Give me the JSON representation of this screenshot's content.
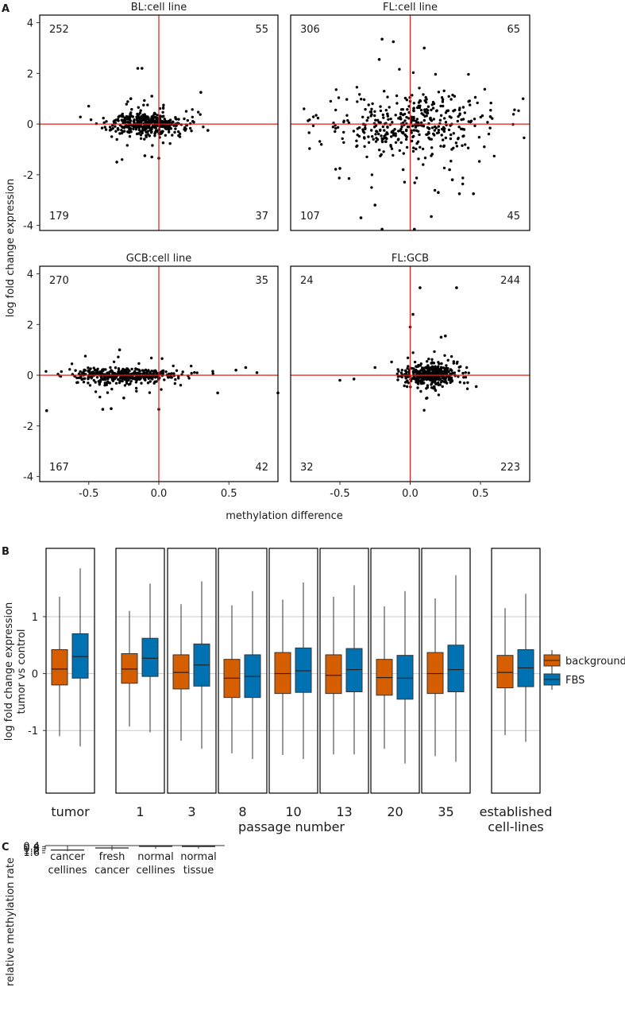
{
  "chart_data": [
    {
      "panel": "A",
      "type": "scatter",
      "xlabel": "methylation difference",
      "ylabel": "log fold change expression",
      "xlim": [
        -0.85,
        0.85
      ],
      "ylim": [
        -4.2,
        4.3
      ],
      "xticks": [
        -0.5,
        0.0,
        0.5
      ],
      "yticks": [
        -4,
        -2,
        0,
        2,
        4
      ],
      "xtick_labels": [
        "-0.5",
        "0.0",
        "0.5"
      ],
      "ytick_labels": [
        "-4",
        "-2",
        "0",
        "2",
        "4"
      ],
      "reference_lines": {
        "x": 0,
        "y": 0,
        "color": "#e0201b"
      },
      "facets": [
        {
          "title": "BL:cell line",
          "counts": {
            "top_left": "252",
            "top_right": "55",
            "bottom_left": "179",
            "bottom_right": "37"
          },
          "x_center": -0.1,
          "x_spread": 0.14,
          "y_spread": 0.22,
          "outliers": [
            [
              -0.15,
              2.2
            ],
            [
              -0.12,
              2.2
            ],
            [
              0.3,
              1.25
            ],
            [
              -0.2,
              1.0
            ],
            [
              -0.3,
              -1.5
            ],
            [
              -0.1,
              -1.25
            ],
            [
              -0.05,
              -1.3
            ],
            [
              0.0,
              -1.35
            ],
            [
              -0.05,
              1.1
            ],
            [
              0.15,
              -0.5
            ],
            [
              0.35,
              -0.25
            ]
          ]
        },
        {
          "title": "FL:cell line",
          "counts": {
            "top_left": "306",
            "top_right": "65",
            "bottom_left": "107",
            "bottom_right": "45"
          },
          "x_center": 0.0,
          "x_spread": 0.3,
          "y_spread": 0.6,
          "outliers": [
            [
              -0.2,
              3.35
            ],
            [
              -0.12,
              3.25
            ],
            [
              -0.22,
              2.55
            ],
            [
              0.1,
              3.0
            ],
            [
              -0.2,
              -4.15
            ],
            [
              0.03,
              -4.15
            ],
            [
              -0.25,
              -3.2
            ],
            [
              -0.35,
              -3.7
            ],
            [
              0.15,
              -3.65
            ],
            [
              0.35,
              -2.75
            ],
            [
              0.45,
              -2.75
            ],
            [
              0.2,
              -2.7
            ],
            [
              -0.5,
              -1.75
            ],
            [
              -0.05,
              -1.8
            ],
            [
              0.28,
              -1.8
            ],
            [
              0.3,
              -2.2
            ]
          ]
        },
        {
          "title": "GCB:cell line",
          "counts": {
            "top_left": "270",
            "top_right": "35",
            "bottom_left": "167",
            "bottom_right": "42"
          },
          "x_center": -0.25,
          "x_spread": 0.2,
          "y_spread": 0.15,
          "outliers": [
            [
              -0.28,
              1.0
            ],
            [
              -0.8,
              -1.4
            ],
            [
              -0.4,
              -1.35
            ],
            [
              -0.34,
              -1.32
            ],
            [
              0.0,
              -1.35
            ],
            [
              0.85,
              -0.7
            ],
            [
              0.42,
              -0.7
            ],
            [
              0.55,
              0.2
            ],
            [
              0.62,
              0.3
            ],
            [
              0.7,
              0.1
            ],
            [
              -0.25,
              -0.9
            ]
          ]
        },
        {
          "title": "FL:GCB",
          "counts": {
            "top_left": "24",
            "top_right": "244",
            "bottom_left": "32",
            "bottom_right": "223"
          },
          "x_center": 0.15,
          "x_spread": 0.1,
          "y_spread": 0.22,
          "outliers": [
            [
              0.07,
              3.45
            ],
            [
              0.33,
              3.45
            ],
            [
              0.02,
              2.4
            ],
            [
              0.0,
              1.9
            ],
            [
              0.22,
              1.5
            ],
            [
              0.25,
              1.55
            ],
            [
              -0.25,
              0.3
            ],
            [
              -0.5,
              -0.2
            ],
            [
              -0.4,
              -0.15
            ],
            [
              0.47,
              -0.45
            ],
            [
              0.12,
              -0.9
            ],
            [
              0.18,
              -0.6
            ]
          ]
        }
      ]
    },
    {
      "panel": "B",
      "type": "box",
      "ylabel": "log fold change expression\ntumor vs control",
      "xlabel": "passage number",
      "ylim": [
        -2.1,
        2.2
      ],
      "yticks": [
        -1,
        0,
        1
      ],
      "ytick_labels": [
        "-1",
        "0",
        "1"
      ],
      "legend": [
        {
          "name": "background",
          "color": "#d55e00"
        },
        {
          "name": "FBS",
          "color": "#0072b2"
        }
      ],
      "legend_position": "right",
      "groups": [
        {
          "label": "tumor",
          "boxes": [
            {
              "series": "background",
              "q1": -0.2,
              "median": 0.08,
              "q3": 0.42,
              "wlo": -1.1,
              "whi": 1.35
            },
            {
              "series": "FBS",
              "q1": -0.08,
              "median": 0.3,
              "q3": 0.7,
              "wlo": -1.28,
              "whi": 1.85
            }
          ]
        },
        {
          "label": "1",
          "boxes": [
            {
              "series": "background",
              "q1": -0.17,
              "median": 0.08,
              "q3": 0.35,
              "wlo": -0.93,
              "whi": 1.1
            },
            {
              "series": "FBS",
              "q1": -0.05,
              "median": 0.27,
              "q3": 0.62,
              "wlo": -1.03,
              "whi": 1.58
            }
          ]
        },
        {
          "label": "3",
          "boxes": [
            {
              "series": "background",
              "q1": -0.27,
              "median": 0.02,
              "q3": 0.33,
              "wlo": -1.18,
              "whi": 1.22
            },
            {
              "series": "FBS",
              "q1": -0.22,
              "median": 0.15,
              "q3": 0.52,
              "wlo": -1.32,
              "whi": 1.62
            }
          ]
        },
        {
          "label": "8",
          "boxes": [
            {
              "series": "background",
              "q1": -0.42,
              "median": -0.08,
              "q3": 0.25,
              "wlo": -1.4,
              "whi": 1.2
            },
            {
              "series": "FBS",
              "q1": -0.42,
              "median": -0.05,
              "q3": 0.33,
              "wlo": -1.5,
              "whi": 1.45
            }
          ]
        },
        {
          "label": "10",
          "boxes": [
            {
              "series": "background",
              "q1": -0.35,
              "median": 0.0,
              "q3": 0.37,
              "wlo": -1.43,
              "whi": 1.3
            },
            {
              "series": "FBS",
              "q1": -0.33,
              "median": 0.05,
              "q3": 0.45,
              "wlo": -1.5,
              "whi": 1.6
            }
          ]
        },
        {
          "label": "13",
          "boxes": [
            {
              "series": "background",
              "q1": -0.35,
              "median": -0.03,
              "q3": 0.33,
              "wlo": -1.42,
              "whi": 1.35
            },
            {
              "series": "FBS",
              "q1": -0.32,
              "median": 0.07,
              "q3": 0.44,
              "wlo": -1.42,
              "whi": 1.55
            }
          ]
        },
        {
          "label": "20",
          "boxes": [
            {
              "series": "background",
              "q1": -0.38,
              "median": -0.07,
              "q3": 0.25,
              "wlo": -1.32,
              "whi": 1.18
            },
            {
              "series": "FBS",
              "q1": -0.45,
              "median": -0.08,
              "q3": 0.32,
              "wlo": -1.58,
              "whi": 1.45
            }
          ]
        },
        {
          "label": "35",
          "boxes": [
            {
              "series": "background",
              "q1": -0.35,
              "median": 0.0,
              "q3": 0.37,
              "wlo": -1.45,
              "whi": 1.32
            },
            {
              "series": "FBS",
              "q1": -0.32,
              "median": 0.07,
              "q3": 0.5,
              "wlo": -1.55,
              "whi": 1.73
            }
          ]
        },
        {
          "label": "established\ncell-lines",
          "boxes": [
            {
              "series": "background",
              "q1": -0.25,
              "median": 0.02,
              "q3": 0.32,
              "wlo": -1.08,
              "whi": 1.15
            },
            {
              "series": "FBS",
              "q1": -0.23,
              "median": 0.1,
              "q3": 0.42,
              "wlo": -1.2,
              "whi": 1.4
            }
          ]
        }
      ]
    },
    {
      "panel": "C",
      "type": "box",
      "ylabel": "relative methylation rate",
      "ylim": [
        0.2,
        1.6
      ],
      "yticks": [
        0.4,
        0.8,
        1.2,
        1.6
      ],
      "ytick_labels": [
        "0.4",
        "0.8",
        "1.2",
        "1.6"
      ],
      "boxes": [
        {
          "label": "cancer\ncellines",
          "q1": 1.0,
          "median": 1.07,
          "q3": 1.22,
          "wlo": 0.84,
          "whi": 1.3,
          "color": "#d6545c"
        },
        {
          "label": "fresh\ncancer",
          "q1": 0.55,
          "median": 0.67,
          "q3": 0.8,
          "wlo": 0.27,
          "whi": 1.17,
          "color": "#8b2a33"
        },
        {
          "label": "normal\ncellines",
          "q1": 0.31,
          "median": 0.36,
          "q3": 0.45,
          "wlo": 0.2,
          "whi": 0.6,
          "color": "#5b6066"
        },
        {
          "label": "normal\ntissue",
          "q1": 0.34,
          "median": 0.38,
          "q3": 0.44,
          "wlo": 0.23,
          "whi": 0.56,
          "color": "#b9bcbf"
        }
      ]
    }
  ]
}
